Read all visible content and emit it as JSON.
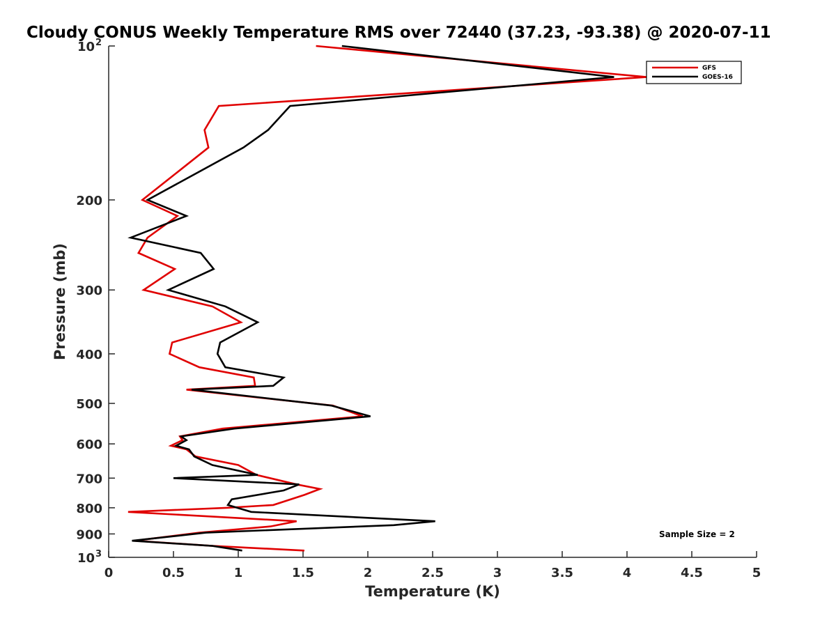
{
  "chart_data": {
    "type": "line",
    "title": "Cloudy CONUS Weekly Temperature RMS over 72440 (37.23, -93.38) @ 2020-07-11",
    "xlabel": "Temperature (K)",
    "ylabel": "Pressure (mb)",
    "xlim": [
      0,
      5
    ],
    "ylim": [
      1000,
      100
    ],
    "y_scale": "log",
    "y_reversed": true,
    "x_ticks": [
      "0",
      "0.5",
      "1",
      "1.5",
      "2",
      "2.5",
      "3",
      "3.5",
      "4",
      "4.5",
      "5"
    ],
    "y_ticks": [
      {
        "value": 100,
        "base": "10",
        "exp": "2"
      },
      {
        "value": 200,
        "label": "200"
      },
      {
        "value": 300,
        "label": "300"
      },
      {
        "value": 400,
        "label": "400"
      },
      {
        "value": 500,
        "label": "500"
      },
      {
        "value": 600,
        "label": "600"
      },
      {
        "value": 700,
        "label": "700"
      },
      {
        "value": 800,
        "label": "800"
      },
      {
        "value": 900,
        "label": "900"
      },
      {
        "value": 1000,
        "base": "10",
        "exp": "3"
      }
    ],
    "grid": false,
    "legend_position": "top-right",
    "annotation": "Sample Size = 2",
    "series": [
      {
        "name": "GFS",
        "color": "#e00000",
        "x": [
          1.6,
          4.15,
          0.85,
          0.74,
          0.77,
          0.26,
          0.53,
          0.3,
          0.23,
          0.51,
          0.27,
          0.8,
          1.02,
          0.49,
          0.47,
          0.7,
          1.12,
          1.13,
          0.6,
          1.73,
          1.96,
          0.88,
          0.55,
          0.57,
          0.48,
          0.6,
          0.67,
          1.0,
          1.14,
          1.45,
          1.63,
          1.51,
          1.27,
          0.91,
          0.15,
          1.45,
          1.25,
          0.7,
          0.2,
          0.8,
          1.51
        ],
        "y": [
          100,
          115,
          131,
          146,
          158,
          200,
          215,
          237,
          254,
          273,
          300,
          323,
          347,
          380,
          400,
          425,
          445,
          462,
          470,
          505,
          530,
          560,
          580,
          590,
          605,
          615,
          635,
          660,
          690,
          720,
          735,
          755,
          790,
          800,
          815,
          850,
          870,
          895,
          928,
          950,
          970
        ]
      },
      {
        "name": "GOES-16",
        "color": "#000000",
        "x": [
          1.8,
          3.9,
          1.4,
          1.23,
          1.04,
          0.3,
          0.6,
          0.17,
          0.71,
          0.81,
          0.46,
          0.9,
          1.15,
          0.86,
          0.84,
          0.9,
          1.35,
          1.27,
          0.64,
          1.72,
          2.02,
          0.97,
          0.56,
          0.6,
          0.52,
          0.62,
          0.66,
          0.8,
          1.15,
          0.5,
          1.47,
          1.35,
          0.95,
          0.92,
          1.1,
          2.52,
          2.2,
          0.75,
          0.18,
          0.8,
          1.03
        ],
        "y": [
          100,
          115,
          131,
          146,
          158,
          200,
          215,
          237,
          254,
          273,
          300,
          323,
          347,
          380,
          400,
          425,
          445,
          462,
          470,
          505,
          530,
          560,
          580,
          590,
          605,
          615,
          635,
          660,
          690,
          700,
          720,
          740,
          770,
          790,
          815,
          850,
          865,
          895,
          928,
          950,
          970
        ]
      }
    ]
  }
}
